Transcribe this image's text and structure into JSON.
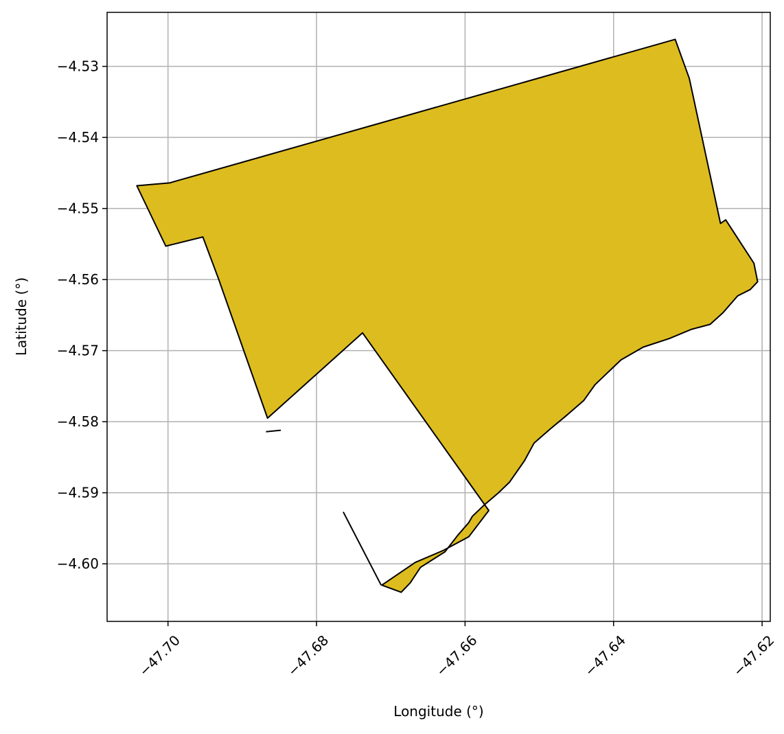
{
  "chart_data": {
    "type": "map",
    "xlabel": "Longitude (°)",
    "ylabel": "Latitude (°)",
    "xlim": [
      -47.7082,
      -47.6189
    ],
    "ylim": [
      -4.6081,
      -4.5224
    ],
    "x_ticks": [
      {
        "value": -47.7,
        "label": "−47.70"
      },
      {
        "value": -47.68,
        "label": "−47.68"
      },
      {
        "value": -47.66,
        "label": "−47.66"
      },
      {
        "value": -47.64,
        "label": "−47.64"
      },
      {
        "value": -47.62,
        "label": "−47.62"
      }
    ],
    "y_ticks": [
      {
        "value": -4.53,
        "label": "−4.53"
      },
      {
        "value": -4.54,
        "label": "−4.54"
      },
      {
        "value": -4.55,
        "label": "−4.55"
      },
      {
        "value": -4.56,
        "label": "−4.56"
      },
      {
        "value": -4.57,
        "label": "−4.57"
      },
      {
        "value": -4.58,
        "label": "−4.58"
      },
      {
        "value": -4.59,
        "label": "−4.59"
      },
      {
        "value": -4.6,
        "label": "−4.60"
      }
    ],
    "grid": true,
    "fill_color": "#DDBC1F",
    "edge_color": "#000000",
    "polygons": [
      [
        [
          -47.7042,
          -4.5468
        ],
        [
          -47.6998,
          -4.5464
        ],
        [
          -47.6317,
          -4.5262
        ],
        [
          -47.6298,
          -4.5317
        ],
        [
          -47.6256,
          -4.5521
        ],
        [
          -47.6249,
          -4.5516
        ],
        [
          -47.6211,
          -4.5577
        ],
        [
          -47.6206,
          -4.5603
        ],
        [
          -47.6216,
          -4.5614
        ],
        [
          -47.6233,
          -4.5623
        ],
        [
          -47.6253,
          -4.5647
        ],
        [
          -47.627,
          -4.5663
        ],
        [
          -47.6295,
          -4.567
        ],
        [
          -47.6325,
          -4.5683
        ],
        [
          -47.636,
          -4.5695
        ],
        [
          -47.639,
          -4.5713
        ],
        [
          -47.641,
          -4.5733
        ],
        [
          -47.6425,
          -4.5748
        ],
        [
          -47.644,
          -4.577
        ],
        [
          -47.6462,
          -4.579
        ],
        [
          -47.6485,
          -4.581
        ],
        [
          -47.6507,
          -4.583
        ],
        [
          -47.652,
          -4.5855
        ],
        [
          -47.653,
          -4.587
        ],
        [
          -47.654,
          -4.5885
        ],
        [
          -47.6555,
          -4.59
        ],
        [
          -47.6575,
          -4.5918
        ],
        [
          -47.659,
          -4.5933
        ],
        [
          -47.6595,
          -4.5942
        ],
        [
          -47.661,
          -4.596
        ],
        [
          -47.6627,
          -4.5983
        ],
        [
          -47.6642,
          -4.5993
        ],
        [
          -47.666,
          -4.6005
        ],
        [
          -47.6674,
          -4.6027
        ],
        [
          -47.6686,
          -4.604
        ],
        [
          -47.6712,
          -4.603
        ],
        [
          -47.6667,
          -4.5998
        ],
        [
          -47.6629,
          -4.5981
        ],
        [
          -47.6595,
          -4.5962
        ],
        [
          -47.6568,
          -4.5925
        ],
        [
          -47.6738,
          -4.5675
        ],
        [
          -47.6866,
          -4.5795
        ],
        [
          -47.6932,
          -4.5599
        ],
        [
          -47.6953,
          -4.554
        ],
        [
          -47.7003,
          -4.5553
        ]
      ]
    ],
    "lines": [
      [
        [
          -47.6764,
          -4.5927
        ],
        [
          -47.6713,
          -4.603
        ]
      ],
      [
        [
          -47.6868,
          -4.5814
        ],
        [
          -47.6848,
          -4.5812
        ]
      ]
    ]
  }
}
